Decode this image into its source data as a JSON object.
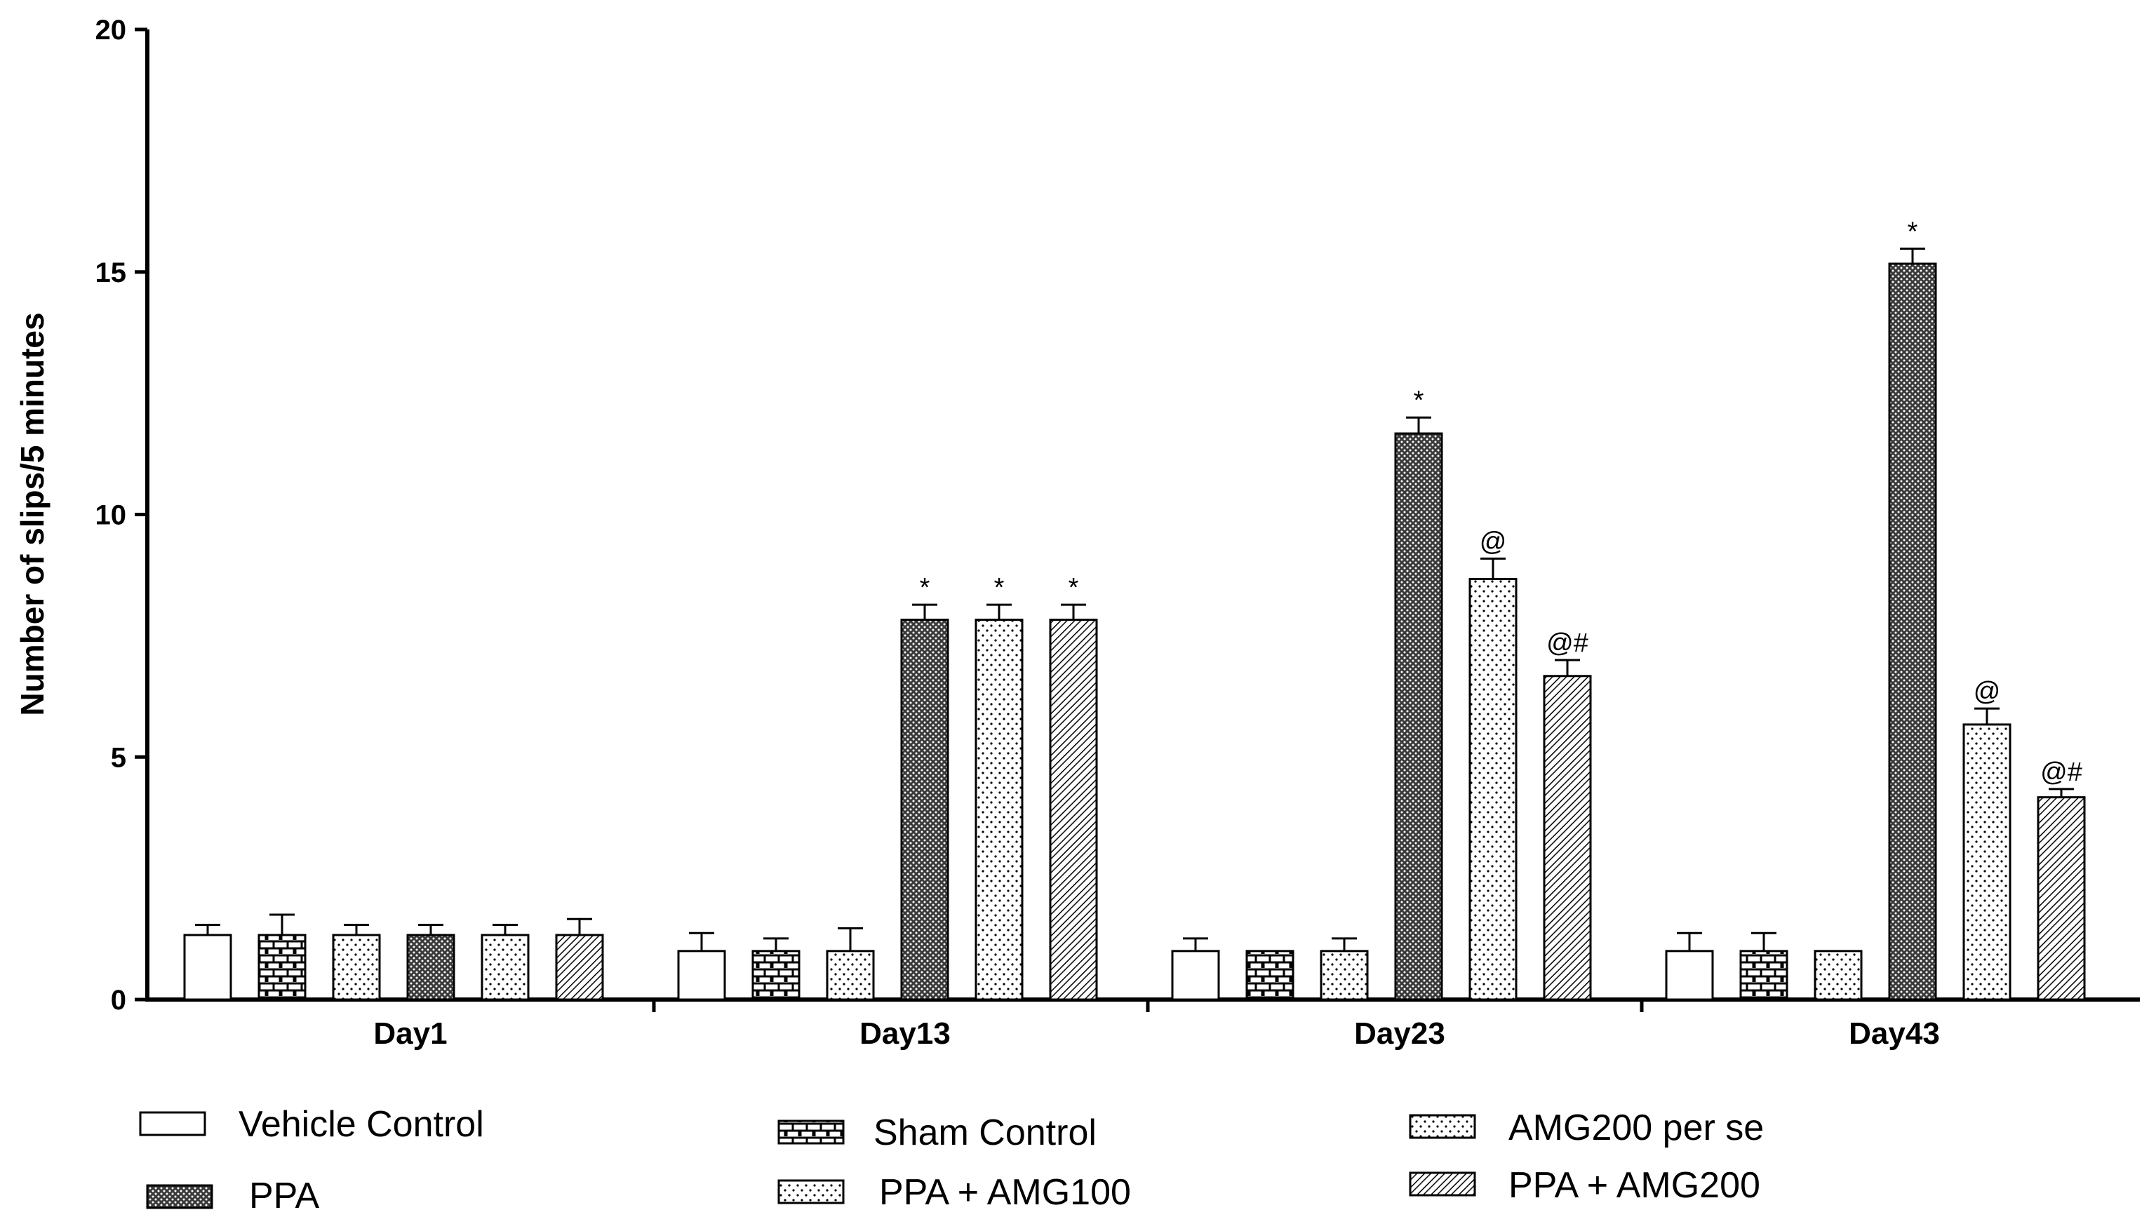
{
  "chart_data": {
    "type": "bar",
    "title": "",
    "xlabel": "",
    "ylabel": "Number of slips/5 minutes",
    "ylim": [
      0,
      20
    ],
    "yticks": [
      0,
      5,
      10,
      15,
      20
    ],
    "categories": [
      "Day1",
      "Day13",
      "Day23",
      "Day43"
    ],
    "series": [
      {
        "name": "Vehicle Control",
        "pattern": "plain",
        "values": [
          1.33,
          1.0,
          1.0,
          1.0
        ],
        "errors": [
          0.21,
          0.37,
          0.26,
          0.37
        ],
        "annotations": [
          "",
          "",
          "",
          ""
        ]
      },
      {
        "name": "Sham Control",
        "pattern": "brick",
        "values": [
          1.33,
          1.0,
          1.0,
          1.0
        ],
        "errors": [
          0.42,
          0.26,
          0.0,
          0.37
        ],
        "annotations": [
          "",
          "",
          "",
          ""
        ]
      },
      {
        "name": "AMG200 per se",
        "pattern": "dots",
        "values": [
          1.33,
          1.0,
          1.0,
          1.0
        ],
        "errors": [
          0.21,
          0.47,
          0.26,
          0.0
        ],
        "annotations": [
          "",
          "",
          "",
          ""
        ]
      },
      {
        "name": "PPA",
        "pattern": "dense",
        "values": [
          1.33,
          7.83,
          11.67,
          15.17
        ],
        "errors": [
          0.21,
          0.31,
          0.33,
          0.31
        ],
        "annotations": [
          "",
          "*",
          "*",
          "*"
        ]
      },
      {
        "name": "PPA + AMG100",
        "pattern": "dots",
        "values": [
          1.33,
          7.83,
          8.67,
          5.67
        ],
        "errors": [
          0.21,
          0.31,
          0.42,
          0.33
        ],
        "annotations": [
          "",
          "*",
          "@",
          "@"
        ]
      },
      {
        "name": "PPA + AMG200",
        "pattern": "hatch",
        "values": [
          1.33,
          7.83,
          6.67,
          4.17
        ],
        "errors": [
          0.33,
          0.31,
          0.33,
          0.17
        ],
        "annotations": [
          "",
          "*",
          "@#",
          "@#"
        ]
      }
    ]
  }
}
